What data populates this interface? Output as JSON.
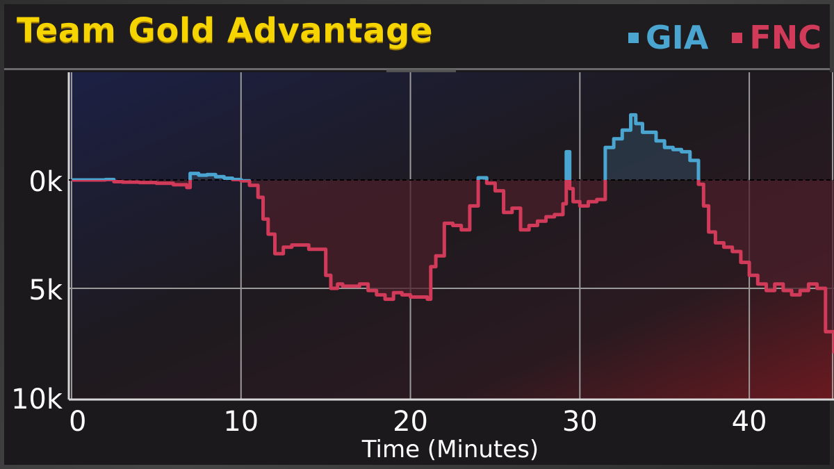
{
  "header": {
    "title": "Team Gold Advantage"
  },
  "legend": [
    {
      "label": "GIA",
      "color": "#4aa6d1"
    },
    {
      "label": "FNC",
      "color": "#d23a5a"
    }
  ],
  "colors": {
    "title": "#f5d400",
    "grid": "#9a9a9a",
    "zero_line": "#000000",
    "gia_fill": "#2c3a4a",
    "fnc_fill": "#4a1f2a"
  },
  "chart_data": {
    "type": "area",
    "title": "Team Gold Advantage",
    "xlabel": "Time (Minutes)",
    "ylabel": "",
    "xlim": [
      0,
      45
    ],
    "ylim": [
      -10000,
      4000
    ],
    "y_ticks": [
      {
        "value": 0,
        "label": "0k"
      },
      {
        "value": -5000,
        "label": "5k"
      },
      {
        "value": -10000,
        "label": "10k"
      }
    ],
    "x_ticks": [
      {
        "value": 0,
        "label": "0"
      },
      {
        "value": 10,
        "label": "10"
      },
      {
        "value": 20,
        "label": "20"
      },
      {
        "value": 30,
        "label": "30"
      },
      {
        "value": 40,
        "label": "40"
      }
    ],
    "grid": true,
    "legend_position": "top-right",
    "positive_team": "GIA",
    "negative_team": "FNC",
    "x": [
      0,
      1,
      2,
      2.5,
      3,
      4,
      5,
      6,
      6.8,
      7,
      7.5,
      8,
      8.5,
      9,
      9.5,
      10,
      10.5,
      11,
      11.3,
      11.6,
      12,
      12.5,
      13,
      14,
      15,
      15.3,
      15.7,
      16,
      16.5,
      17,
      17.5,
      18,
      18.5,
      19,
      19.5,
      20,
      21,
      21.2,
      21.5,
      22,
      22.5,
      23,
      23.5,
      24,
      24.5,
      25,
      25.5,
      26,
      26.5,
      27,
      27.5,
      28,
      28.5,
      29,
      29.2,
      29.4,
      29.6,
      30,
      30.5,
      31,
      31.5,
      32,
      32.5,
      33,
      33.3,
      33.7,
      34,
      34.5,
      35,
      35.5,
      36,
      36.5,
      37,
      37.3,
      37.6,
      38,
      38.5,
      39,
      39.5,
      40,
      40.5,
      41,
      41.5,
      42,
      42.5,
      43,
      43.5,
      44,
      44.5,
      45
    ],
    "series": [
      {
        "name": "",
        "values": [
          0,
          0,
          20,
          -80,
          -100,
          -120,
          -150,
          -220,
          -350,
          300,
          220,
          250,
          150,
          80,
          20,
          -40,
          -250,
          -800,
          -1800,
          -2500,
          -3400,
          -3100,
          -3000,
          -3200,
          -4400,
          -5000,
          -4800,
          -4900,
          -4900,
          -4800,
          -5100,
          -5300,
          -5500,
          -5200,
          -5300,
          -5400,
          -5500,
          -4000,
          -3500,
          -2000,
          -2100,
          -2300,
          -1200,
          100,
          -150,
          -500,
          -1500,
          -1300,
          -2300,
          -2100,
          -1900,
          -1700,
          -1600,
          -1100,
          1300,
          -400,
          -1000,
          -1200,
          -1000,
          -900,
          1500,
          1900,
          2300,
          3000,
          2600,
          2200,
          2200,
          1800,
          1500,
          1400,
          1300,
          900,
          -200,
          -1200,
          -2400,
          -2900,
          -3100,
          -3300,
          -3800,
          -4400,
          -4800,
          -5100,
          -4800,
          -5100,
          -5300,
          -5100,
          -4800,
          -5000,
          -7000,
          -8000
        ]
      }
    ]
  }
}
